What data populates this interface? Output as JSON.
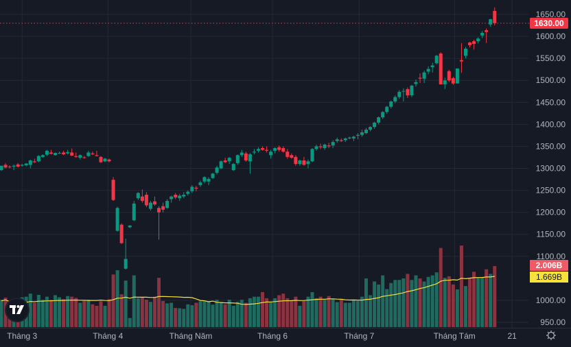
{
  "chart_data": {
    "type": "candlestick",
    "price_axis": {
      "ticks": [
        "1650.00",
        "1600.00",
        "1550.00",
        "1500.00",
        "1450.00",
        "1400.00",
        "1350.00",
        "1300.00",
        "1250.00",
        "1200.00",
        "1150.00",
        "1100.00",
        "1000.00",
        "950.00"
      ],
      "ylim": [
        950,
        1650
      ]
    },
    "time_axis": {
      "labels": [
        {
          "text": "Tháng 3",
          "at_bar": 5
        },
        {
          "text": "Tháng 4",
          "at_bar": 25.7
        },
        {
          "text": "Tháng Năm",
          "at_bar": 45.7
        },
        {
          "text": "Tháng 6",
          "at_bar": 65.4
        },
        {
          "text": "Tháng 7",
          "at_bar": 86.3
        },
        {
          "text": "Tháng Tám",
          "at_bar": 109.3
        },
        {
          "text": "21",
          "at_bar": 123.2
        }
      ]
    },
    "last_price": {
      "value": 1630,
      "label": "1630.00"
    },
    "volume_last": {
      "value": 2.006,
      "label": "2.006B"
    },
    "volume_ma": {
      "value": 1.669,
      "label": "1.669B"
    },
    "volume_unit": "B",
    "grid": true,
    "colors": {
      "up": "#089981",
      "down": "#f23645",
      "vol_up": "#1f6b60",
      "vol_down": "#8b3340",
      "ma": "#f7e23b",
      "background": "#161a25",
      "grid": "#242935"
    },
    "bars_ohlcv": [
      [
        1296,
        1306,
        1294,
        1306,
        0.9
      ],
      [
        1308,
        1312,
        1300,
        1302,
        0.97
      ],
      [
        1304,
        1307,
        1300,
        1303,
        0.75
      ],
      [
        1304,
        1309,
        1296,
        1306,
        0.72
      ],
      [
        1309,
        1312,
        1302,
        1304,
        0.62
      ],
      [
        1306,
        1310,
        1304,
        1308,
        0.98
      ],
      [
        1307,
        1312,
        1305,
        1311,
        1.0
      ],
      [
        1308,
        1320,
        1300,
        1318,
        1.1
      ],
      [
        1316,
        1322,
        1312,
        1314,
        0.8
      ],
      [
        1316,
        1330,
        1314,
        1328,
        1.06
      ],
      [
        1326,
        1332,
        1324,
        1330,
        0.9
      ],
      [
        1331,
        1342,
        1328,
        1340,
        1.0
      ],
      [
        1336,
        1342,
        1332,
        1333,
        0.9
      ],
      [
        1330,
        1336,
        1329,
        1335,
        1.05
      ],
      [
        1334,
        1338,
        1333,
        1335,
        0.98
      ],
      [
        1336,
        1340,
        1330,
        1332,
        0.92
      ],
      [
        1334,
        1342,
        1332,
        1337,
        1.02
      ],
      [
        1336,
        1345,
        1328,
        1329,
        1.0
      ],
      [
        1328,
        1336,
        1324,
        1326,
        0.96
      ],
      [
        1324,
        1332,
        1320,
        1330,
        0.8
      ],
      [
        1325,
        1328,
        1322,
        1324,
        0.86
      ],
      [
        1328,
        1340,
        1326,
        1336,
        0.9
      ],
      [
        1334,
        1338,
        1330,
        1332,
        0.75
      ],
      [
        1330,
        1340,
        1327,
        1328,
        0.7
      ],
      [
        1326,
        1328,
        1312,
        1314,
        0.85
      ],
      [
        1316,
        1324,
        1314,
        1322,
        0.7
      ],
      [
        1320,
        1322,
        1314,
        1316,
        0.92
      ],
      [
        1274,
        1280,
        1226,
        1228,
        1.73
      ],
      [
        1158,
        1213,
        1156,
        1210,
        1.87
      ],
      [
        1172,
        1175,
        1128,
        1130,
        1.08
      ],
      [
        1072,
        1140,
        1070,
        1094,
        1.53
      ],
      [
        1166,
        1171,
        1164,
        1170,
        0.3
      ],
      [
        1182,
        1226,
        1180,
        1220,
        1.7
      ],
      [
        1232,
        1246,
        1228,
        1244,
        0.95
      ],
      [
        1236,
        1252,
        1222,
        1226,
        0.98
      ],
      [
        1240,
        1246,
        1212,
        1216,
        0.9
      ],
      [
        1208,
        1226,
        1204,
        1222,
        0.83
      ],
      [
        1225,
        1236,
        1215,
        1218,
        1.0
      ],
      [
        1210,
        1214,
        1138,
        1200,
        1.62
      ],
      [
        1214,
        1222,
        1200,
        1206,
        0.86
      ],
      [
        1210,
        1230,
        1208,
        1226,
        0.78
      ],
      [
        1230,
        1238,
        1222,
        1236,
        0.8
      ],
      [
        1240,
        1244,
        1230,
        1234,
        0.63
      ],
      [
        1232,
        1242,
        1226,
        1238,
        0.62
      ],
      [
        1236,
        1246,
        1232,
        1240,
        0.6
      ],
      [
        1242,
        1250,
        1238,
        1247,
        0.75
      ],
      [
        1248,
        1262,
        1244,
        1258,
        0.72
      ],
      [
        1256,
        1260,
        1248,
        1254,
        0.8
      ],
      [
        1262,
        1272,
        1258,
        1268,
        0.85
      ],
      [
        1270,
        1282,
        1266,
        1280,
        0.85
      ],
      [
        1270,
        1280,
        1262,
        1276,
        0.85
      ],
      [
        1278,
        1290,
        1276,
        1288,
        0.74
      ],
      [
        1290,
        1306,
        1286,
        1302,
        0.9
      ],
      [
        1300,
        1318,
        1298,
        1316,
        0.82
      ],
      [
        1318,
        1324,
        1312,
        1314,
        0.75
      ],
      [
        1316,
        1326,
        1310,
        1324,
        0.9
      ],
      [
        1296,
        1312,
        1294,
        1310,
        0.7
      ],
      [
        1312,
        1332,
        1308,
        1330,
        0.83
      ],
      [
        1330,
        1342,
        1326,
        1336,
        0.9
      ],
      [
        1334,
        1338,
        1315,
        1318,
        0.8
      ],
      [
        1316,
        1335,
        1288,
        1332,
        0.95
      ],
      [
        1336,
        1344,
        1332,
        1338,
        1.0
      ],
      [
        1340,
        1348,
        1336,
        1344,
        1.0
      ],
      [
        1346,
        1350,
        1340,
        1342,
        1.15
      ],
      [
        1342,
        1350,
        1336,
        1340,
        0.95
      ],
      [
        1330,
        1342,
        1322,
        1338,
        0.83
      ],
      [
        1340,
        1348,
        1334,
        1346,
        0.95
      ],
      [
        1348,
        1352,
        1338,
        1342,
        1.05
      ],
      [
        1346,
        1350,
        1336,
        1338,
        1.1
      ],
      [
        1338,
        1344,
        1322,
        1326,
        0.95
      ],
      [
        1330,
        1334,
        1322,
        1324,
        0.88
      ],
      [
        1326,
        1330,
        1306,
        1310,
        1.0
      ],
      [
        1310,
        1320,
        1306,
        1318,
        0.7
      ],
      [
        1318,
        1326,
        1306,
        1308,
        0.86
      ],
      [
        1310,
        1320,
        1300,
        1316,
        1.0
      ],
      [
        1316,
        1346,
        1314,
        1344,
        1.15
      ],
      [
        1344,
        1354,
        1340,
        1350,
        0.95
      ],
      [
        1350,
        1356,
        1344,
        1348,
        1.0
      ],
      [
        1346,
        1356,
        1342,
        1354,
        0.9
      ],
      [
        1352,
        1358,
        1346,
        1350,
        1.02
      ],
      [
        1352,
        1364,
        1346,
        1360,
        0.94
      ],
      [
        1362,
        1370,
        1358,
        1366,
        0.82
      ],
      [
        1364,
        1368,
        1360,
        1362,
        0.9
      ],
      [
        1364,
        1370,
        1360,
        1368,
        0.8
      ],
      [
        1368,
        1372,
        1366,
        1370,
        0.8
      ],
      [
        1368,
        1374,
        1362,
        1372,
        0.88
      ],
      [
        1374,
        1380,
        1366,
        1376,
        0.86
      ],
      [
        1376,
        1388,
        1372,
        1382,
        1.0
      ],
      [
        1380,
        1392,
        1378,
        1388,
        1.6
      ],
      [
        1388,
        1396,
        1384,
        1394,
        1.05
      ],
      [
        1394,
        1406,
        1390,
        1404,
        1.5
      ],
      [
        1404,
        1418,
        1400,
        1416,
        1.4
      ],
      [
        1416,
        1430,
        1412,
        1428,
        1.7
      ],
      [
        1428,
        1442,
        1424,
        1440,
        1.25
      ],
      [
        1440,
        1454,
        1436,
        1452,
        1.45
      ],
      [
        1452,
        1466,
        1448,
        1462,
        1.55
      ],
      [
        1462,
        1478,
        1458,
        1474,
        1.55
      ],
      [
        1476,
        1482,
        1452,
        1476,
        1.6
      ],
      [
        1480,
        1484,
        1460,
        1466,
        1.75
      ],
      [
        1466,
        1490,
        1462,
        1488,
        1.55
      ],
      [
        1492,
        1502,
        1486,
        1496,
        1.7
      ],
      [
        1506,
        1516,
        1494,
        1504,
        1.6
      ],
      [
        1504,
        1522,
        1494,
        1518,
        1.5
      ],
      [
        1520,
        1532,
        1514,
        1526,
        1.65
      ],
      [
        1530,
        1540,
        1518,
        1534,
        1.7
      ],
      [
        1539,
        1558,
        1536,
        1556,
        1.8
      ],
      [
        1561,
        1564,
        1491,
        1491,
        2.6
      ],
      [
        1491,
        1506,
        1480,
        1500,
        1.62
      ],
      [
        1521,
        1524,
        1496,
        1500,
        1.67
      ],
      [
        1505,
        1508,
        1490,
        1493,
        1.4
      ],
      [
        1493,
        1527,
        1493,
        1527,
        1.24
      ],
      [
        1546,
        1585,
        1517,
        1543,
        2.68
      ],
      [
        1556,
        1576,
        1550,
        1572,
        1.35
      ],
      [
        1586,
        1588,
        1575,
        1580,
        1.62
      ],
      [
        1589,
        1592,
        1570,
        1583,
        1.82
      ],
      [
        1589,
        1598,
        1584,
        1595,
        1.62
      ],
      [
        1602,
        1612,
        1596,
        1608,
        1.62
      ],
      [
        1614,
        1618,
        1585,
        1610,
        1.9
      ],
      [
        1627,
        1640,
        1622,
        1639,
        1.75
      ],
      [
        1658,
        1666,
        1625,
        1630,
        2.006
      ]
    ]
  },
  "ui": {
    "logo_text": "TV",
    "settings_icon": "gear-icon"
  }
}
